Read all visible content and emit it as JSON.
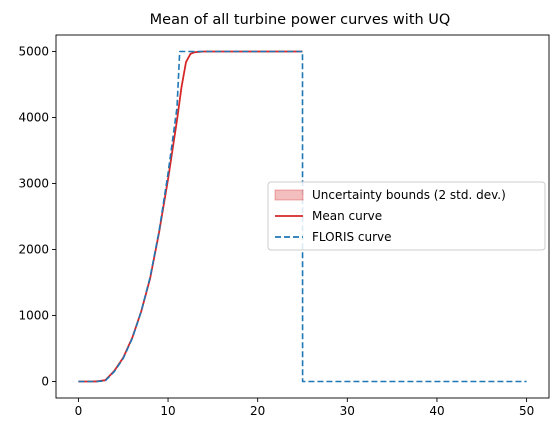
{
  "chart_data": {
    "type": "line",
    "title": "Mean of all turbine power curves with UQ",
    "xlabel": "",
    "ylabel": "",
    "xlim": [
      -2.5,
      52.5
    ],
    "ylim": [
      -250,
      5250
    ],
    "xticks": [
      0,
      10,
      20,
      30,
      40,
      50
    ],
    "yticks": [
      0,
      1000,
      2000,
      3000,
      4000,
      5000
    ],
    "grid": false,
    "legend_position": "center-right",
    "series": [
      {
        "name": "Uncertainty bounds (2 std. dev.)",
        "kind": "band",
        "color": "#d62728",
        "x": [
          0,
          3,
          4,
          5,
          6,
          7,
          8,
          9,
          10,
          11,
          11.5,
          12,
          12.5,
          13,
          25
        ],
        "lower": [
          0,
          0,
          140,
          340,
          640,
          1040,
          1540,
          2240,
          3040,
          3940,
          4440,
          4820,
          4950,
          4985,
          4985
        ],
        "upper": [
          0,
          30,
          180,
          380,
          680,
          1080,
          1580,
          2280,
          3080,
          3980,
          4480,
          4860,
          4980,
          5000,
          5000
        ]
      },
      {
        "name": "Mean curve",
        "kind": "line",
        "color": "#d62728",
        "style": "solid",
        "x": [
          0,
          2,
          3,
          4,
          5,
          6,
          7,
          8,
          9,
          10,
          11,
          11.5,
          12,
          12.5,
          13,
          14,
          25
        ],
        "y": [
          0,
          0,
          20,
          160,
          360,
          660,
          1060,
          1560,
          2260,
          3060,
          3960,
          4460,
          4840,
          4965,
          4990,
          5000,
          5000
        ]
      },
      {
        "name": "FLORIS curve",
        "kind": "line",
        "color": "#1f77b4",
        "style": "dashed",
        "x": [
          0,
          2,
          3,
          4,
          5,
          6,
          7,
          8,
          9,
          10,
          11,
          11.3,
          25,
          25.01,
          50
        ],
        "y": [
          0,
          0,
          10,
          150,
          350,
          650,
          1060,
          1580,
          2280,
          3150,
          4150,
          5000,
          5000,
          0,
          0
        ]
      }
    ]
  }
}
